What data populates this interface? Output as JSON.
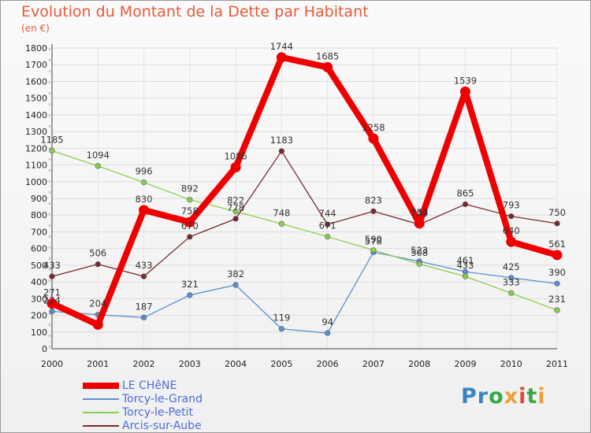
{
  "header": {
    "title": "Evolution du Montant de la Dette par Habitant",
    "subtitle": "(en €)"
  },
  "logo": {
    "letters": [
      "P",
      "r",
      "o",
      "x",
      "i",
      "t",
      "i"
    ],
    "colors": [
      "#3b82c4",
      "#3b82c4",
      "#3aa64a",
      "#f0a030",
      "#e04a3a",
      "#3aa64a",
      "#f0a030"
    ]
  },
  "chart_data": {
    "type": "line",
    "title": "Evolution du Montant de la Dette par Habitant",
    "subtitle": "(en €)",
    "xlabel": "",
    "ylabel": "",
    "x": [
      "2000",
      "2001",
      "2002",
      "2003",
      "2004",
      "2005",
      "2006",
      "2007",
      "2008",
      "2009",
      "2010",
      "2011"
    ],
    "ylim": [
      0,
      1800
    ],
    "yticks": [
      0,
      100,
      200,
      300,
      400,
      500,
      600,
      700,
      800,
      900,
      1000,
      1100,
      1200,
      1300,
      1400,
      1500,
      1600,
      1700,
      1800
    ],
    "grid": true,
    "legend_position": "bottom-left",
    "series": [
      {
        "name": "LE CHêNE",
        "color": "#ee0000",
        "values": [
          271,
          144,
          830,
          758,
          1086,
          1744,
          1685,
          1258,
          750,
          1539,
          640,
          561
        ],
        "labels": [
          "271",
          "",
          "830",
          "758",
          "1086",
          "1744",
          "1685",
          "1258",
          "750",
          "1539",
          "640",
          "561"
        ]
      },
      {
        "name": "Torcy-le-Grand",
        "color": "#5b8fd0",
        "values": [
          224,
          204,
          187,
          321,
          382,
          119,
          94,
          578,
          523,
          461,
          425,
          390
        ],
        "labels": [
          "224",
          "204",
          "187",
          "321",
          "382",
          "119",
          "94",
          "578",
          "523",
          "461",
          "425",
          "390"
        ]
      },
      {
        "name": "Torcy-le-Petit",
        "color": "#8ccf4f",
        "values": [
          1185,
          1094,
          996,
          892,
          822,
          748,
          671,
          590,
          508,
          433,
          333,
          231
        ],
        "labels": [
          "1185",
          "1094",
          "996",
          "892",
          "822",
          "748",
          "671",
          "590",
          "508",
          "433",
          "333",
          "231"
        ]
      },
      {
        "name": "Arcis-sur-Aube",
        "color": "#7a2a2a",
        "values": [
          433,
          506,
          433,
          670,
          778,
          1183,
          744,
          823,
          744,
          865,
          793,
          750
        ],
        "labels": [
          "433",
          "506",
          "433",
          "670",
          "778",
          "1183",
          "744",
          "823",
          "744",
          "865",
          "793",
          "750"
        ]
      }
    ]
  }
}
